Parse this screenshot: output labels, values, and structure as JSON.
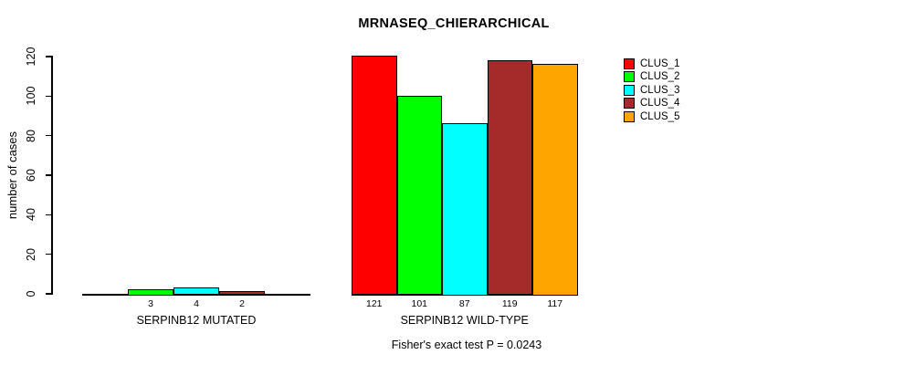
{
  "title": "MRNASEQ_CHIERARCHICAL",
  "footer": "Fisher's exact test P = 0.0243",
  "chart_data": {
    "type": "bar",
    "title": "MRNASEQ_CHIERARCHICAL",
    "xlabel": "",
    "ylabel": "number of cases",
    "ylim": [
      0,
      120
    ],
    "yticks": [
      "0",
      "20",
      "40",
      "60",
      "80",
      "100",
      "120"
    ],
    "grid": false,
    "legend_position": "right",
    "clusters": [
      {
        "name": "CLUS_1",
        "color": "#FF0000"
      },
      {
        "name": "CLUS_2",
        "color": "#00FF00"
      },
      {
        "name": "CLUS_3",
        "color": "#00FFFF"
      },
      {
        "name": "CLUS_4",
        "color": "#A52A2A"
      },
      {
        "name": "CLUS_5",
        "color": "#FFA500"
      }
    ],
    "groups": [
      {
        "label": "SERPINB12 MUTATED",
        "values": [
          0,
          3,
          4,
          2,
          0
        ],
        "bar_labels": [
          "",
          "3",
          "4",
          "2",
          ""
        ]
      },
      {
        "label": "SERPINB12 WILD-TYPE",
        "values": [
          121,
          101,
          87,
          119,
          117
        ],
        "bar_labels": [
          "121",
          "101",
          "87",
          "119",
          "117"
        ]
      }
    ],
    "annotation": "Fisher's exact test P = 0.0243"
  }
}
